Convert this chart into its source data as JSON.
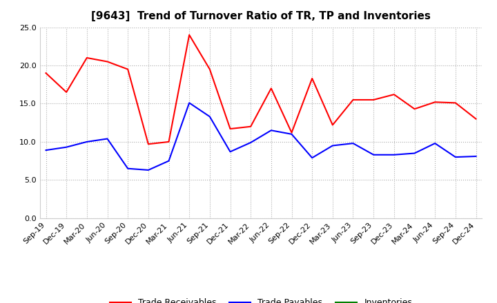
{
  "title": "[9643]  Trend of Turnover Ratio of TR, TP and Inventories",
  "x_labels": [
    "Sep-19",
    "Dec-19",
    "Mar-20",
    "Jun-20",
    "Sep-20",
    "Dec-20",
    "Mar-21",
    "Jun-21",
    "Sep-21",
    "Dec-21",
    "Mar-22",
    "Jun-22",
    "Sep-22",
    "Dec-22",
    "Mar-23",
    "Jun-23",
    "Sep-23",
    "Dec-23",
    "Mar-24",
    "Jun-24",
    "Sep-24",
    "Dec-24"
  ],
  "trade_receivables": [
    19.0,
    16.5,
    21.0,
    20.5,
    19.5,
    9.7,
    10.0,
    24.0,
    19.5,
    11.7,
    12.0,
    17.0,
    11.2,
    18.3,
    12.2,
    15.5,
    15.5,
    16.2,
    14.3,
    15.2,
    15.1,
    13.0
  ],
  "trade_payables": [
    8.9,
    9.3,
    10.0,
    10.4,
    6.5,
    6.3,
    7.5,
    15.1,
    13.3,
    8.7,
    9.9,
    11.5,
    11.0,
    7.9,
    9.5,
    9.8,
    8.3,
    8.3,
    8.5,
    9.8,
    8.0,
    8.1
  ],
  "inventories": [
    null,
    null,
    null,
    null,
    null,
    null,
    null,
    null,
    null,
    null,
    null,
    null,
    null,
    null,
    null,
    null,
    null,
    null,
    null,
    null,
    null,
    null
  ],
  "tr_color": "#ff0000",
  "tp_color": "#0000ff",
  "inv_color": "#008000",
  "ylim": [
    0.0,
    25.0
  ],
  "yticks": [
    0.0,
    5.0,
    10.0,
    15.0,
    20.0,
    25.0
  ],
  "background_color": "#ffffff",
  "grid_color": "#aaaaaa",
  "title_fontsize": 11,
  "tick_fontsize": 8,
  "legend_fontsize": 9
}
